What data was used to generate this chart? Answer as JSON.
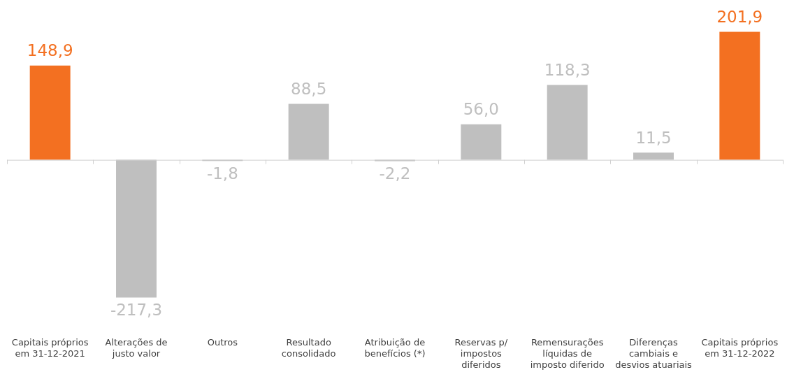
{
  "chart_data": {
    "type": "bar",
    "categories": [
      "Capitais próprios em 31-12-2021",
      "Alterações de justo valor",
      "Outros",
      "Resultado consolidado",
      "Atribuição de benefícios (*)",
      "Reservas p/ impostos diferidos",
      "Remensurações líquidas de imposto diferido",
      "Diferenças cambiais e desvios atuariais",
      "Capitais próprios em 31-12-2022"
    ],
    "values": [
      148.9,
      -217.3,
      -1.8,
      88.5,
      -2.2,
      56.0,
      118.3,
      11.5,
      201.9
    ],
    "colors": [
      "#f37021",
      "#bfbfbf",
      "#bfbfbf",
      "#bfbfbf",
      "#bfbfbf",
      "#bfbfbf",
      "#bfbfbf",
      "#bfbfbf",
      "#f37021"
    ],
    "value_labels": [
      "148,9",
      "-217,3",
      "-1,8",
      "88,5",
      "-2,2",
      "56,0",
      "118,3",
      "11,5",
      "201,9"
    ],
    "grid": false,
    "legend": false
  }
}
